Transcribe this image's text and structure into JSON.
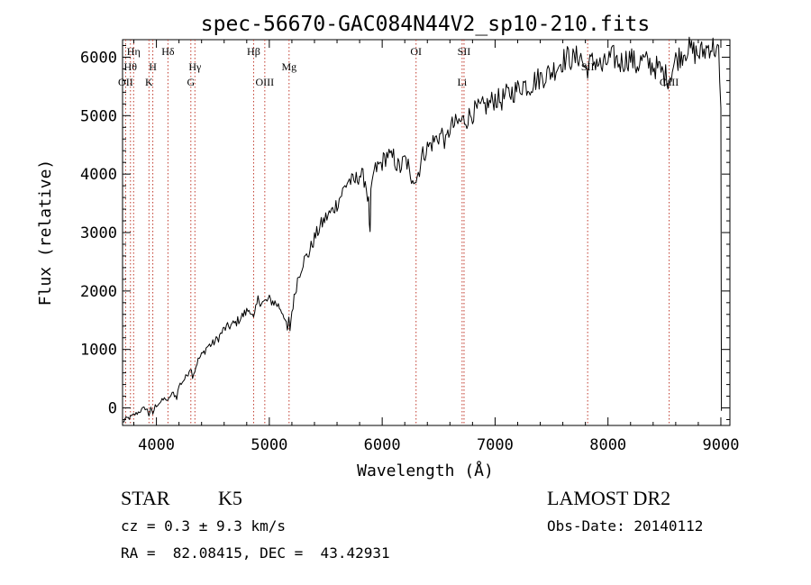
{
  "chart_data": {
    "type": "line",
    "title": "spec-56670-GAC084N44V2_sp10-210.fits",
    "xlabel": "Wavelength (Å)",
    "ylabel": "Flux (relative)",
    "xlim": [
      3700,
      9080
    ],
    "ylim": [
      -300,
      6300
    ],
    "x_ticks": [
      4000,
      5000,
      6000,
      7000,
      8000,
      9000
    ],
    "x_tick_labels": [
      "4000",
      "5000",
      "6000",
      "7000",
      "8000",
      "9000"
    ],
    "y_ticks": [
      0,
      1000,
      2000,
      3000,
      4000,
      5000,
      6000
    ],
    "y_tick_labels": [
      "0",
      "1000",
      "2000",
      "3000",
      "4000",
      "5000",
      "6000"
    ],
    "grid": false,
    "line_color": "#000000",
    "marker_color": "#c0392b",
    "series": [
      {
        "x": [
          3705,
          3720,
          3740,
          3760,
          3780,
          3800,
          3820,
          3850,
          3880,
          3900,
          3920,
          3933,
          3950,
          3968,
          3990,
          4020,
          4050,
          4080,
          4102,
          4120,
          4150,
          4180,
          4200,
          4230,
          4260,
          4280,
          4300,
          4320,
          4340,
          4360,
          4380,
          4400,
          4420,
          4450,
          4500,
          4550,
          4600,
          4650,
          4700,
          4750,
          4800,
          4830,
          4861,
          4900,
          4950,
          5000,
          5050,
          5080,
          5100,
          5130,
          5160,
          5172,
          5183,
          5200,
          5250,
          5300,
          5350,
          5400,
          5450,
          5500,
          5550,
          5600,
          5650,
          5700,
          5750,
          5800,
          5850,
          5880,
          5893,
          5900,
          5920,
          5950,
          6000,
          6050,
          6080,
          6100,
          6130,
          6160,
          6200,
          6230,
          6250,
          6270,
          6300,
          6330,
          6350,
          6400,
          6450,
          6500,
          6540,
          6563,
          6600,
          6650,
          6700,
          6750,
          6800,
          6850,
          6900,
          6950,
          7000,
          7050,
          7100,
          7150,
          7200,
          7250,
          7300,
          7350,
          7400,
          7450,
          7500,
          7550,
          7600,
          7650,
          7700,
          7750,
          7800,
          7850,
          7900,
          7950,
          8000,
          8050,
          8100,
          8150,
          8200,
          8250,
          8300,
          8350,
          8400,
          8450,
          8500,
          8542,
          8560,
          8600,
          8650,
          8700,
          8750,
          8800,
          8850,
          8900,
          8950,
          8980,
          9000,
          9005
        ],
        "y": [
          -250,
          -200,
          -180,
          -170,
          -150,
          -120,
          -100,
          -60,
          -20,
          0,
          -40,
          -120,
          -20,
          -100,
          30,
          80,
          120,
          170,
          100,
          200,
          250,
          180,
          380,
          450,
          520,
          600,
          700,
          560,
          640,
          780,
          850,
          900,
          950,
          1050,
          1100,
          1200,
          1350,
          1400,
          1450,
          1550,
          1650,
          1700,
          1500,
          1850,
          1800,
          1850,
          1800,
          1750,
          1700,
          1600,
          1300,
          1500,
          1350,
          1650,
          2200,
          2500,
          2650,
          2900,
          3100,
          3250,
          3350,
          3500,
          3700,
          3900,
          3850,
          4000,
          3900,
          3500,
          2900,
          3600,
          4000,
          4100,
          4200,
          4350,
          4250,
          4300,
          4150,
          4100,
          4250,
          4150,
          3850,
          4000,
          3900,
          4100,
          4300,
          4450,
          4550,
          4650,
          4700,
          4500,
          4800,
          4850,
          4900,
          4950,
          5050,
          5100,
          5150,
          5200,
          5300,
          5250,
          5350,
          5400,
          5450,
          5550,
          5500,
          5600,
          5650,
          5700,
          5750,
          5850,
          5950,
          6000,
          5950,
          6050,
          5800,
          5900,
          5950,
          5800,
          5950,
          6000,
          5900,
          5950,
          6000,
          5850,
          5950,
          5900,
          5850,
          5800,
          5700,
          5650,
          5750,
          5950,
          6050,
          6150,
          6100,
          6050,
          6100,
          6200,
          6150,
          6050,
          5000,
          -50
        ]
      }
    ],
    "line_markers": [
      {
        "x": 3727,
        "label": "OII",
        "row": 3
      },
      {
        "x": 3770,
        "label": "Hθ",
        "row": 2
      },
      {
        "x": 3798,
        "label": "Hη",
        "row": 1
      },
      {
        "x": 3934,
        "label": "K",
        "row": 3
      },
      {
        "x": 3968,
        "label": "H",
        "row": 2
      },
      {
        "x": 4102,
        "label": "Hδ",
        "row": 1
      },
      {
        "x": 4305,
        "label": "G",
        "row": 3
      },
      {
        "x": 4341,
        "label": "Hγ",
        "row": 2
      },
      {
        "x": 4861,
        "label": "Hβ",
        "row": 1
      },
      {
        "x": 4960,
        "label": "OIII",
        "row": 3
      },
      {
        "x": 5175,
        "label": "Mg",
        "row": 2
      },
      {
        "x": 6300,
        "label": "OI",
        "row": 1
      },
      {
        "x": 6708,
        "label": "Li",
        "row": 3
      },
      {
        "x": 6725,
        "label": "SII",
        "row": 1
      },
      {
        "x": 7820,
        "label": "SII",
        "row": 2
      },
      {
        "x": 8542,
        "label": "CaII",
        "row": 3
      }
    ]
  },
  "info": {
    "class_label": "STAR",
    "subclass": "K5",
    "survey": "LAMOST DR2",
    "redshift": "cz = 0.3 ± 9.3 km/s",
    "obs_date": "Obs-Date: 20140112",
    "coords": "RA =  82.08415, DEC =  43.42931"
  }
}
